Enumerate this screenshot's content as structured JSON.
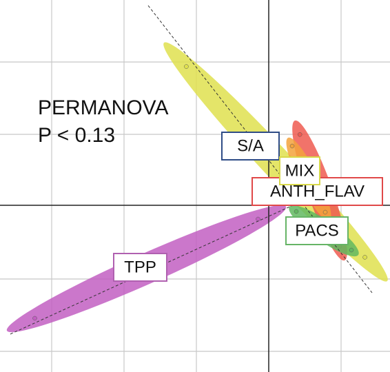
{
  "chart_data": {
    "type": "ordination",
    "annotation": [
      "PERMANOVA",
      "P < 0.13"
    ],
    "groups": [
      {
        "label": "TPP",
        "color": "#c25fc2"
      },
      {
        "label": "S/A",
        "color": "#dfe04f"
      },
      {
        "label": "ANTH_FLAV",
        "color": "#ef5a50"
      },
      {
        "label": "MIX",
        "color": "#f3a23c"
      },
      {
        "label": "PACS",
        "color": "#62b860"
      }
    ],
    "label_borders": [
      "#b060b0",
      "#2f4c86",
      "#e04848",
      "#d8d84a",
      "#66b466"
    ]
  }
}
